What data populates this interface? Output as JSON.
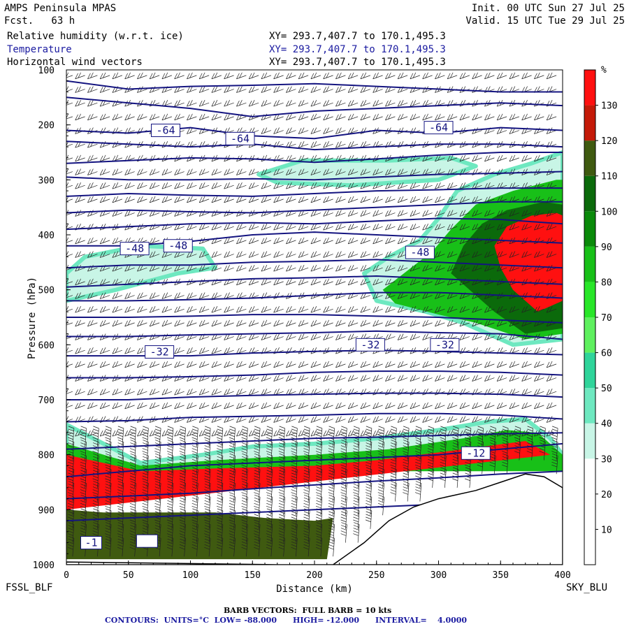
{
  "header": {
    "model": "AMPS Peninsula MPAS",
    "fcst": "Fcst.   63 h",
    "init": "Init. 00 UTC Sun 27 Jul 25",
    "valid": "Valid. 15 UTC Tue 29 Jul 25",
    "fields": [
      {
        "name": "Relative humidity (w.r.t. ice)",
        "xy": "XY= 293.7,407.7 to 170.1,495.3",
        "color": "#000000"
      },
      {
        "name": "Temperature",
        "xy": "XY= 293.7,407.7 to 170.1,495.3",
        "color": "#1a1aa0"
      },
      {
        "name": "Horizontal wind vectors",
        "xy": "XY= 293.7,407.7 to 170.1,495.3",
        "color": "#000000"
      }
    ]
  },
  "footer": {
    "left_station": "FSSL_BLF",
    "right_station": "SKY_BLU",
    "barb_note": "BARB VECTORS:  FULL BARB = 10 kts",
    "contours_note": "CONTOURS:  UNITS=°C  LOW= -88.000      HIGH= -12.000      INTERVAL=    4.0000"
  },
  "chart_data": {
    "type": "heatmap",
    "xlabel": "Distance (km)",
    "ylabel": "Pressure (hPa)",
    "xlim": [
      0,
      400
    ],
    "ylim": [
      1000,
      100
    ],
    "x_ticks": [
      0,
      50,
      100,
      150,
      200,
      250,
      300,
      350,
      400
    ],
    "y_ticks": [
      100,
      200,
      300,
      400,
      500,
      600,
      700,
      800,
      900,
      1000
    ],
    "colorbar": {
      "unit": "%",
      "ticks": [
        10,
        20,
        30,
        40,
        50,
        60,
        70,
        80,
        90,
        100,
        110,
        120,
        130
      ],
      "bands": [
        {
          "from": 0,
          "to": 30,
          "color": "#ffffff"
        },
        {
          "from": 30,
          "to": 40,
          "color": "#c8f5e6"
        },
        {
          "from": 40,
          "to": 50,
          "color": "#6ee8c0"
        },
        {
          "from": 50,
          "to": 60,
          "color": "#2fd49a"
        },
        {
          "from": 60,
          "to": 70,
          "color": "#5ff05f"
        },
        {
          "from": 70,
          "to": 80,
          "color": "#28e628"
        },
        {
          "from": 80,
          "to": 90,
          "color": "#18c018"
        },
        {
          "from": 90,
          "to": 100,
          "color": "#0a8a0a"
        },
        {
          "from": 100,
          "to": 110,
          "color": "#0b6a0b"
        },
        {
          "from": 110,
          "to": 120,
          "color": "#3f5a10"
        },
        {
          "from": 120,
          "to": 130,
          "color": "#c41a08"
        },
        {
          "from": 130,
          "to": 140,
          "color": "#ff1010"
        }
      ]
    },
    "rh_regions": [
      {
        "band": "30-50",
        "points": [
          [
            0,
            470
          ],
          [
            15,
            440
          ],
          [
            60,
            420
          ],
          [
            110,
            425
          ],
          [
            120,
            460
          ],
          [
            90,
            470
          ],
          [
            40,
            500
          ],
          [
            0,
            520
          ]
        ]
      },
      {
        "band": "30-50",
        "points": [
          [
            155,
            290
          ],
          [
            190,
            265
          ],
          [
            260,
            265
          ],
          [
            310,
            260
          ],
          [
            330,
            275
          ],
          [
            300,
            300
          ],
          [
            230,
            310
          ],
          [
            170,
            305
          ]
        ]
      },
      {
        "band": "30-50",
        "points": [
          [
            240,
            470
          ],
          [
            260,
            440
          ],
          [
            285,
            410
          ],
          [
            300,
            370
          ],
          [
            315,
            320
          ],
          [
            345,
            290
          ],
          [
            375,
            270
          ],
          [
            400,
            250
          ],
          [
            400,
            590
          ],
          [
            360,
            600
          ],
          [
            320,
            560
          ],
          [
            290,
            540
          ],
          [
            250,
            520
          ]
        ]
      },
      {
        "band": "60-90",
        "points": [
          [
            255,
            500
          ],
          [
            275,
            465
          ],
          [
            295,
            430
          ],
          [
            310,
            390
          ],
          [
            330,
            345
          ],
          [
            360,
            320
          ],
          [
            395,
            300
          ],
          [
            400,
            300
          ],
          [
            400,
            580
          ],
          [
            370,
            590
          ],
          [
            330,
            560
          ],
          [
            300,
            545
          ],
          [
            265,
            525
          ]
        ]
      },
      {
        "band": "90-110",
        "points": [
          [
            310,
            470
          ],
          [
            320,
            420
          ],
          [
            335,
            380
          ],
          [
            355,
            355
          ],
          [
            385,
            340
          ],
          [
            400,
            345
          ],
          [
            400,
            570
          ],
          [
            370,
            580
          ],
          [
            345,
            540
          ],
          [
            325,
            500
          ]
        ]
      },
      {
        "band": "120+",
        "points": [
          [
            345,
            420
          ],
          [
            355,
            385
          ],
          [
            375,
            365
          ],
          [
            395,
            360
          ],
          [
            400,
            365
          ],
          [
            400,
            520
          ],
          [
            380,
            540
          ],
          [
            360,
            500
          ],
          [
            350,
            460
          ]
        ]
      },
      {
        "band": "30-50",
        "points": [
          [
            0,
            745
          ],
          [
            60,
            815
          ],
          [
            110,
            800
          ],
          [
            150,
            785
          ],
          [
            200,
            780
          ],
          [
            250,
            770
          ],
          [
            300,
            755
          ],
          [
            340,
            740
          ],
          [
            370,
            735
          ],
          [
            390,
            770
          ],
          [
            400,
            800
          ],
          [
            400,
            820
          ],
          [
            0,
            820
          ]
        ]
      },
      {
        "band": "60-90",
        "points": [
          [
            0,
            780
          ],
          [
            60,
            820
          ],
          [
            120,
            810
          ],
          [
            200,
            800
          ],
          [
            260,
            790
          ],
          [
            320,
            770
          ],
          [
            355,
            755
          ],
          [
            380,
            760
          ],
          [
            400,
            800
          ],
          [
            400,
            830
          ],
          [
            0,
            830
          ]
        ]
      },
      {
        "band": "120+",
        "points": [
          [
            0,
            800
          ],
          [
            60,
            830
          ],
          [
            120,
            825
          ],
          [
            200,
            820
          ],
          [
            250,
            810
          ],
          [
            320,
            790
          ],
          [
            370,
            775
          ],
          [
            390,
            800
          ],
          [
            0,
            900
          ]
        ]
      },
      {
        "band": "110-120",
        "points": [
          [
            0,
            900
          ],
          [
            30,
            905
          ],
          [
            80,
            905
          ],
          [
            120,
            905
          ],
          [
            160,
            915
          ],
          [
            200,
            920
          ],
          [
            215,
            915
          ],
          [
            210,
            990
          ],
          [
            0,
            990
          ]
        ]
      }
    ],
    "terrain_profile": {
      "note": "surface (white, masked) boundary",
      "points": [
        [
          0,
          995
        ],
        [
          100,
          998
        ],
        [
          170,
          1000
        ],
        [
          215,
          1000
        ],
        [
          240,
          960
        ],
        [
          260,
          920
        ],
        [
          280,
          895
        ],
        [
          300,
          880
        ],
        [
          330,
          865
        ],
        [
          350,
          850
        ],
        [
          370,
          835
        ],
        [
          385,
          840
        ],
        [
          400,
          860
        ],
        [
          400,
          1000
        ],
        [
          0,
          1000
        ]
      ]
    },
    "temperature_contours": {
      "units": "°C",
      "low": -88,
      "high": -12,
      "interval": 4,
      "labels": [
        {
          "text": "-64",
          "x": 80,
          "p": 210
        },
        {
          "text": "-64",
          "x": 140,
          "p": 225
        },
        {
          "text": "-64",
          "x": 300,
          "p": 205
        },
        {
          "text": "-48",
          "x": 55,
          "p": 425
        },
        {
          "text": "-48",
          "x": 90,
          "p": 420
        },
        {
          "text": "-48",
          "x": 285,
          "p": 432
        },
        {
          "text": "-32",
          "x": 75,
          "p": 613
        },
        {
          "text": "-32",
          "x": 245,
          "p": 600
        },
        {
          "text": "-32",
          "x": 305,
          "p": 600
        },
        {
          "text": "-12",
          "x": 330,
          "p": 797
        },
        {
          "text": "-1",
          "x": 20,
          "p": 960
        },
        {
          "text": "",
          "x": 65,
          "p": 957
        }
      ],
      "lines": [
        {
          "p": [
            120,
            135,
            130,
            128,
            125,
            130,
            135,
            140,
            140
          ]
        },
        {
          "p": [
            150,
            160,
            170,
            185,
            175,
            170,
            165,
            160,
            165
          ]
        },
        {
          "p": [
            210,
            215,
            205,
            220,
            225,
            210,
            215,
            205,
            210
          ]
        },
        {
          "p": [
            230,
            235,
            240,
            235,
            245,
            240,
            235,
            235,
            240
          ]
        },
        {
          "p": [
            270,
            265,
            260,
            262,
            268,
            262,
            255,
            250,
            250
          ]
        },
        {
          "p": [
            295,
            300,
            300,
            298,
            300,
            295,
            290,
            288,
            285
          ]
        },
        {
          "p": [
            330,
            325,
            328,
            330,
            325,
            320,
            318,
            315,
            315
          ]
        },
        {
          "p": [
            360,
            355,
            358,
            360,
            355,
            350,
            345,
            340,
            340
          ]
        },
        {
          "p": [
            390,
            385,
            380,
            378,
            380,
            375,
            370,
            372,
            380
          ]
        },
        {
          "p": [
            420,
            420,
            412,
            400,
            395,
            400,
            405,
            410,
            415
          ]
        },
        {
          "p": [
            460,
            455,
            455,
            450,
            448,
            445,
            450,
            455,
            460
          ]
        },
        {
          "p": [
            495,
            490,
            485,
            480,
            478,
            475,
            480,
            485,
            490
          ]
        },
        {
          "p": [
            520,
            520,
            518,
            515,
            510,
            505,
            505,
            510,
            515
          ]
        },
        {
          "p": [
            550,
            550,
            548,
            545,
            545,
            548,
            550,
            555,
            560
          ]
        },
        {
          "p": [
            585,
            585,
            582,
            580,
            578,
            575,
            578,
            580,
            590
          ]
        },
        {
          "p": [
            620,
            620,
            620,
            615,
            612,
            610,
            612,
            615,
            618
          ]
        },
        {
          "p": [
            660,
            660,
            658,
            655,
            650,
            648,
            648,
            650,
            655
          ]
        },
        {
          "p": [
            700,
            700,
            695,
            692,
            690,
            688,
            688,
            690,
            695
          ]
        },
        {
          "p": [
            740,
            738,
            732,
            730,
            728,
            725,
            725,
            728,
            735
          ]
        },
        {
          "p": [
            790,
            785,
            780,
            775,
            770,
            768,
            765,
            762,
            760
          ]
        },
        {
          "p": [
            840,
            830,
            820,
            815,
            810,
            805,
            800,
            790,
            780
          ]
        },
        {
          "p": [
            880,
            875,
            870,
            862,
            855,
            848,
            842,
            835,
            830
          ]
        },
        {
          "p": [
            920,
            915,
            910,
            905,
            900,
            895,
            890,
            880,
            870
          ]
        }
      ]
    },
    "wind_barbs": {
      "unit": "kts",
      "full_barb_kts": 10,
      "x_spacing_km": 10,
      "p_spacing_hpa": 25
    }
  }
}
